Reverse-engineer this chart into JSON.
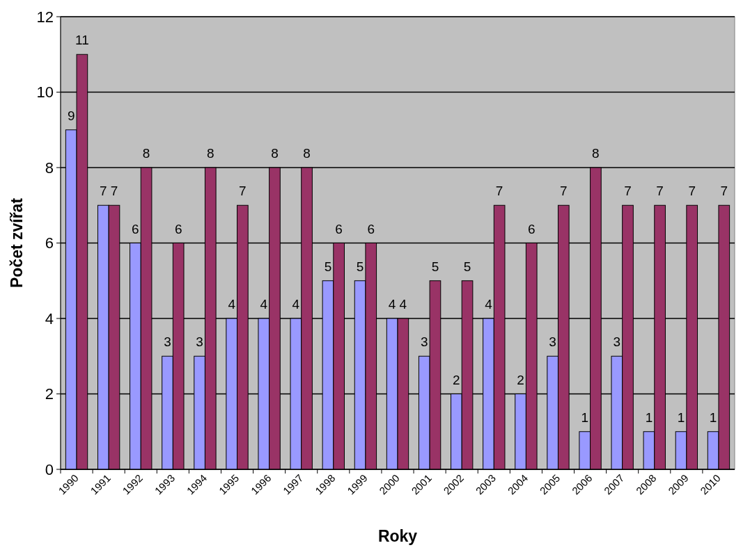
{
  "chart_data": {
    "type": "bar",
    "xlabel": "Roky",
    "ylabel": "Počet zvířat",
    "categories": [
      "1990",
      "1991",
      "1992",
      "1993",
      "1994",
      "1995",
      "1996",
      "1997",
      "1998",
      "1999",
      "2000",
      "2001",
      "2002",
      "2003",
      "2004",
      "2005",
      "2006",
      "2007",
      "2008",
      "2009",
      "2010"
    ],
    "series": [
      {
        "color": "#9999ff",
        "values": [
          9,
          7,
          6,
          3,
          3,
          4,
          4,
          4,
          5,
          5,
          4,
          3,
          2,
          4,
          2,
          3,
          1,
          3,
          1,
          1,
          1
        ]
      },
      {
        "color": "#993366",
        "values": [
          11,
          7,
          8,
          6,
          8,
          7,
          8,
          8,
          6,
          6,
          4,
          5,
          5,
          7,
          6,
          7,
          8,
          7,
          7,
          7,
          7
        ]
      }
    ],
    "ylim": [
      0,
      12
    ],
    "yticks": [
      0,
      2,
      4,
      6,
      8,
      10,
      12
    ],
    "grid": "y",
    "data_labels": true
  }
}
